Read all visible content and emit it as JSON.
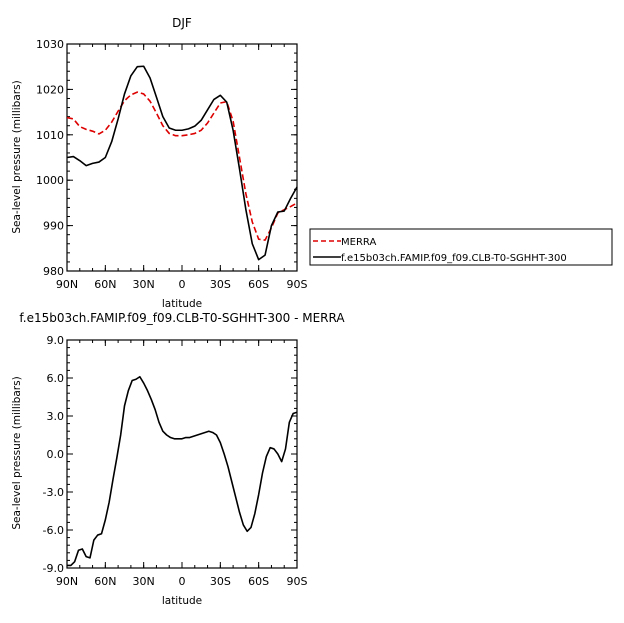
{
  "chart_data": [
    {
      "type": "line",
      "title": "DJF",
      "xlabel": "latitude",
      "ylabel": "Sea-level pressure (millibars)",
      "xlim": [
        -90,
        90
      ],
      "ylim": [
        980,
        1030
      ],
      "x_ticks": [
        -90,
        -60,
        -30,
        0,
        30,
        60,
        90
      ],
      "x_tick_labels": [
        "90N",
        "60N",
        "30N",
        "0",
        "30S",
        "60S",
        "90S"
      ],
      "y_ticks": [
        980,
        990,
        1000,
        1010,
        1020,
        1030
      ],
      "y_tick_labels": [
        "980",
        "990",
        "1000",
        "1010",
        "1020",
        "1030"
      ],
      "legend": {
        "placement": "right",
        "entries": [
          {
            "label": "MERRA",
            "color": "#dd0000",
            "style": "dashed"
          },
          {
            "label": "f.e15b03ch.FAMIP.f09_f09.CLB-T0-SGHHT-300",
            "color": "#000000",
            "style": "solid"
          }
        ]
      },
      "series": [
        {
          "name": "MERRA",
          "color": "#dd0000",
          "style": "dashed",
          "x": [
            -90,
            -85,
            -80,
            -75,
            -70,
            -65,
            -60,
            -55,
            -50,
            -45,
            -40,
            -35,
            -30,
            -25,
            -20,
            -15,
            -10,
            -5,
            0,
            5,
            10,
            15,
            20,
            25,
            30,
            35,
            40,
            45,
            50,
            55,
            60,
            65,
            70,
            75,
            80,
            85,
            90
          ],
          "y": [
            1013.8,
            1013.5,
            1011.8,
            1011.2,
            1010.8,
            1010.2,
            1011.0,
            1012.8,
            1015.2,
            1017.5,
            1018.8,
            1019.4,
            1019.0,
            1017.4,
            1014.8,
            1012.0,
            1010.3,
            1009.8,
            1009.8,
            1010.0,
            1010.3,
            1011.0,
            1012.6,
            1014.8,
            1017.0,
            1017.3,
            1013.0,
            1005.0,
            997.0,
            990.8,
            987.0,
            986.8,
            989.5,
            992.8,
            993.5,
            994.2,
            995.0
          ]
        },
        {
          "name": "f.e15b03ch.FAMIP.f09_f09.CLB-T0-SGHHT-300",
          "color": "#000000",
          "style": "solid",
          "x": [
            -90,
            -85,
            -80,
            -75,
            -70,
            -65,
            -60,
            -55,
            -50,
            -45,
            -40,
            -35,
            -30,
            -25,
            -20,
            -15,
            -10,
            -5,
            0,
            5,
            10,
            15,
            20,
            25,
            30,
            35,
            40,
            45,
            50,
            55,
            60,
            65,
            70,
            75,
            80,
            85,
            90
          ],
          "y": [
            1005.0,
            1005.2,
            1004.3,
            1003.2,
            1003.7,
            1004.0,
            1005.0,
            1008.5,
            1013.5,
            1019.0,
            1023.0,
            1025.0,
            1025.1,
            1022.5,
            1018.3,
            1014.0,
            1011.5,
            1011.0,
            1011.0,
            1011.3,
            1011.9,
            1013.2,
            1015.5,
            1017.8,
            1018.7,
            1017.2,
            1011.0,
            1002.5,
            993.5,
            986.0,
            982.5,
            983.5,
            990.0,
            993.0,
            993.2,
            996.0,
            998.5
          ]
        }
      ]
    },
    {
      "type": "line",
      "title": "f.e15b03ch.FAMIP.f09_f09.CLB-T0-SGHHT-300 - MERRA",
      "xlabel": "latitude",
      "ylabel": "Sea-level pressure (millibars)",
      "xlim": [
        -90,
        90
      ],
      "ylim": [
        -9,
        9
      ],
      "x_ticks": [
        -90,
        -60,
        -30,
        0,
        30,
        60,
        90
      ],
      "x_tick_labels": [
        "90N",
        "60N",
        "30N",
        "0",
        "30S",
        "60S",
        "90S"
      ],
      "y_ticks": [
        -9,
        -6,
        -3,
        0,
        3,
        6,
        9
      ],
      "y_tick_labels": [
        "-9.0",
        "-6.0",
        "-3.0",
        "0.0",
        "3.0",
        "6.0",
        "9.0"
      ],
      "series": [
        {
          "color": "#000000",
          "style": "solid",
          "x": [
            -90,
            -87,
            -84,
            -81,
            -78,
            -75,
            -72,
            -69,
            -66,
            -63,
            -60,
            -57,
            -54,
            -51,
            -48,
            -45,
            -42,
            -39,
            -36,
            -33,
            -30,
            -27,
            -24,
            -21,
            -18,
            -15,
            -12,
            -9,
            -6,
            -3,
            0,
            3,
            6,
            9,
            12,
            15,
            18,
            21,
            24,
            27,
            30,
            33,
            36,
            39,
            42,
            45,
            48,
            51,
            54,
            57,
            60,
            63,
            66,
            69,
            72,
            75,
            78,
            81,
            84,
            87,
            90
          ],
          "y": [
            -8.8,
            -8.8,
            -8.5,
            -7.6,
            -7.5,
            -8.1,
            -8.2,
            -6.8,
            -6.4,
            -6.3,
            -5.2,
            -3.8,
            -2.0,
            -0.3,
            1.5,
            3.8,
            5.0,
            5.8,
            5.9,
            6.1,
            5.6,
            5.0,
            4.3,
            3.5,
            2.5,
            1.8,
            1.5,
            1.3,
            1.2,
            1.2,
            1.2,
            1.3,
            1.3,
            1.4,
            1.5,
            1.6,
            1.7,
            1.8,
            1.7,
            1.5,
            0.9,
            0.0,
            -1.0,
            -2.2,
            -3.4,
            -4.6,
            -5.6,
            -6.1,
            -5.8,
            -4.7,
            -3.2,
            -1.5,
            -0.2,
            0.5,
            0.4,
            0.0,
            -0.6,
            0.4,
            2.5,
            3.2,
            3.3
          ]
        }
      ]
    }
  ]
}
